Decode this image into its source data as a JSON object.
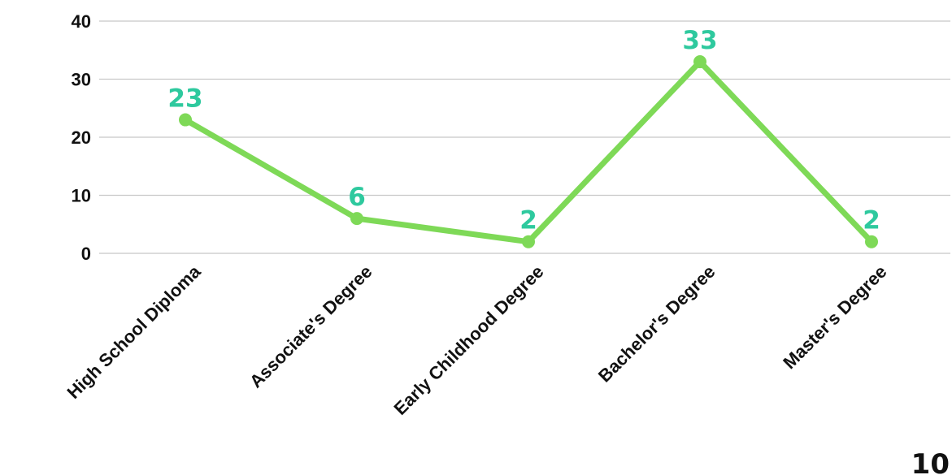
{
  "chart_data": {
    "type": "line",
    "categories": [
      "High School Diploma",
      "Associate's Degree",
      "Early Childhood Degree",
      "Bachelor's Degree",
      "Master's Degree"
    ],
    "values": [
      23,
      6,
      2,
      33,
      2
    ],
    "data_labels": [
      "23",
      "6",
      "2",
      "33",
      "2"
    ],
    "ylim": [
      0,
      40
    ],
    "yticks": [
      0,
      10,
      20,
      30,
      40
    ],
    "grid": true,
    "legend": "none",
    "line_color": "#7ed957",
    "label_color": "#2ec99e"
  },
  "page_number": "10"
}
